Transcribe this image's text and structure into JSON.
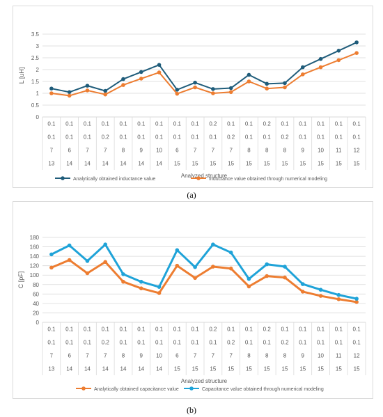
{
  "chart_data": [
    {
      "type": "line",
      "ylabel": "L [uH]",
      "xlabel": "Analyzed structure",
      "ylim": [
        0,
        3.5
      ],
      "yticks": [
        "0",
        "0.5",
        "1",
        "1.5",
        "2",
        "2.5",
        "3",
        "3.5"
      ],
      "legend_position": "bottom",
      "category_rows": [
        [
          "0.1",
          "0.1",
          "0.1",
          "0.1",
          "0.1",
          "0.1",
          "0.1",
          "0.1",
          "0.1",
          "0.2",
          "0.1",
          "0.1",
          "0.2",
          "0.1",
          "0.1",
          "0.1",
          "0.1",
          "0.1"
        ],
        [
          "0.1",
          "0.1",
          "0.1",
          "0.2",
          "0.1",
          "0.1",
          "0.1",
          "0.1",
          "0.1",
          "0.1",
          "0.2",
          "0.1",
          "0.1",
          "0.2",
          "0.1",
          "0.1",
          "0.1",
          "0.1"
        ],
        [
          "7",
          "6",
          "7",
          "7",
          "8",
          "9",
          "10",
          "6",
          "7",
          "7",
          "7",
          "8",
          "8",
          "8",
          "9",
          "10",
          "11",
          "12"
        ],
        [
          "13",
          "14",
          "14",
          "14",
          "14",
          "14",
          "14",
          "15",
          "15",
          "15",
          "15",
          "15",
          "15",
          "15",
          "15",
          "15",
          "15",
          "15"
        ]
      ],
      "series": [
        {
          "name": "Analytically obtained inductance value",
          "color": "#1f5c7a",
          "values": [
            1.2,
            1.05,
            1.32,
            1.1,
            1.6,
            1.9,
            2.2,
            1.15,
            1.45,
            1.18,
            1.22,
            1.78,
            1.4,
            1.43,
            2.1,
            2.45,
            2.8,
            3.15
          ]
        },
        {
          "name": "Inductance value obtained through numerical modeling",
          "color": "#ed7d31",
          "values": [
            1.0,
            0.9,
            1.12,
            0.95,
            1.35,
            1.62,
            1.88,
            0.98,
            1.25,
            1.0,
            1.05,
            1.5,
            1.2,
            1.25,
            1.8,
            2.1,
            2.4,
            2.7
          ]
        }
      ]
    },
    {
      "type": "line",
      "ylabel": "C [pF]",
      "xlabel": "Analyzed structure",
      "ylim": [
        0,
        180
      ],
      "yticks": [
        "0",
        "20",
        "40",
        "60",
        "80",
        "100",
        "120",
        "140",
        "160",
        "180"
      ],
      "legend_position": "bottom",
      "category_rows": [
        [
          "0.1",
          "0.1",
          "0.1",
          "0.1",
          "0.1",
          "0.1",
          "0.1",
          "0.1",
          "0.1",
          "0.2",
          "0.1",
          "0.1",
          "0.2",
          "0.1",
          "0.1",
          "0.1",
          "0.1",
          "0.1"
        ],
        [
          "0.1",
          "0.1",
          "0.1",
          "0.2",
          "0.1",
          "0.1",
          "0.1",
          "0.1",
          "0.1",
          "0.1",
          "0.2",
          "0.1",
          "0.1",
          "0.2",
          "0.1",
          "0.1",
          "0.1",
          "0.1"
        ],
        [
          "7",
          "6",
          "7",
          "7",
          "8",
          "9",
          "10",
          "6",
          "7",
          "7",
          "7",
          "8",
          "8",
          "8",
          "9",
          "10",
          "11",
          "12"
        ],
        [
          "13",
          "14",
          "14",
          "14",
          "14",
          "14",
          "14",
          "15",
          "15",
          "15",
          "15",
          "15",
          "15",
          "15",
          "15",
          "15",
          "15",
          "15"
        ]
      ],
      "series": [
        {
          "name": "Analytically obtained capacitance value",
          "color": "#ed7d31",
          "values": [
            116,
            132,
            104,
            128,
            86,
            72,
            62,
            120,
            94,
            118,
            114,
            76,
            98,
            95,
            65,
            56,
            49,
            43
          ]
        },
        {
          "name": "Capacitance value obtained through numerical modeling",
          "color": "#1fa3d8",
          "values": [
            144,
            163,
            130,
            165,
            102,
            86,
            75,
            153,
            117,
            165,
            148,
            92,
            123,
            118,
            81,
            69,
            58,
            50
          ]
        }
      ]
    }
  ],
  "captions": [
    "(a)",
    "(b)"
  ]
}
